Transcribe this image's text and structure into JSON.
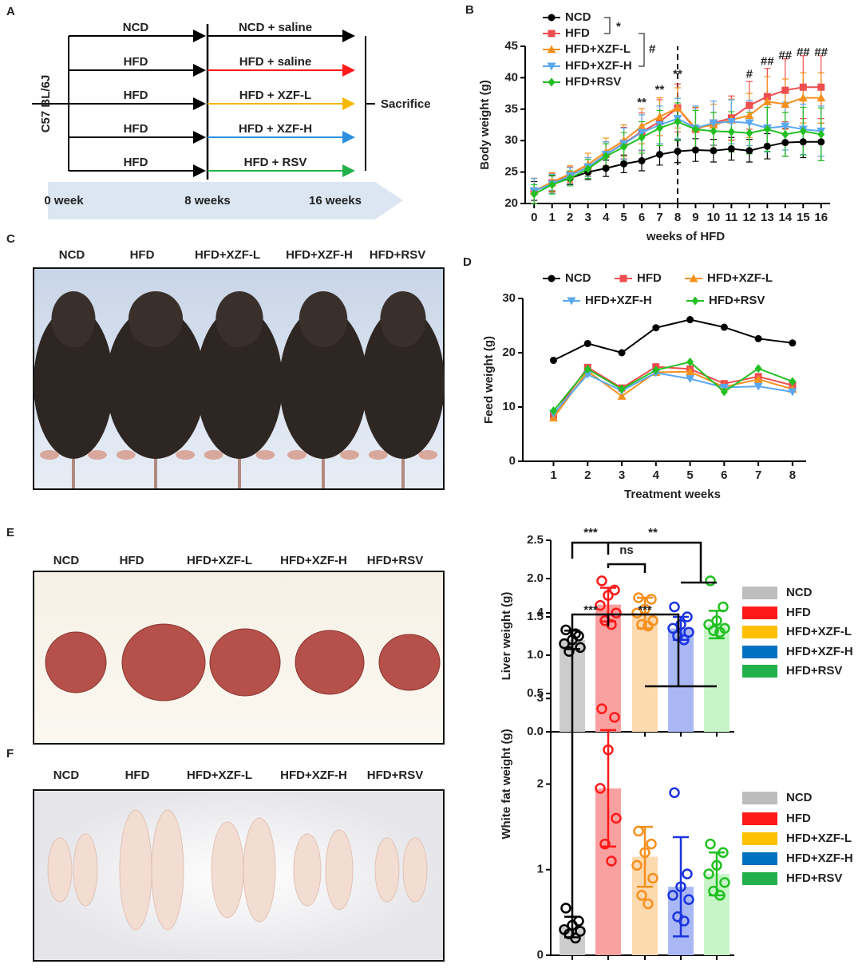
{
  "panel_a": {
    "label": "A",
    "strain": "C57 BL/6J",
    "end": "Sacrifice",
    "rows": [
      {
        "before": "NCD",
        "after": "NCD + saline",
        "color": "#000000"
      },
      {
        "before": "HFD",
        "after": "HFD + saline",
        "color": "#ff1a1a"
      },
      {
        "before": "HFD",
        "after": "HFD + XZF-L",
        "color": "#f5b800"
      },
      {
        "before": "HFD",
        "after": "HFD + XZF-H",
        "color": "#2e8ee0"
      },
      {
        "before": "HFD",
        "after": "HFD + RSV",
        "color": "#22b04b"
      }
    ],
    "timeline": [
      "0 week",
      "8 weeks",
      "16 weeks"
    ]
  },
  "panel_c": {
    "label": "C",
    "captions": [
      "NCD",
      "HFD",
      "HFD+XZF-L",
      "HFD+XZF-H",
      "HFD+RSV"
    ]
  },
  "panel_e_photo": {
    "label": "E",
    "captions": [
      "NCD",
      "HFD",
      "HFD+XZF-L",
      "HFD+XZF-H",
      "HFD+RSV"
    ]
  },
  "panel_f_photo": {
    "label": "F",
    "captions": [
      "NCD",
      "HFD",
      "HFD+XZF-L",
      "HFD+XZF-H",
      "HFD+RSV"
    ]
  },
  "chart_data": [
    {
      "type": "line",
      "label": "B",
      "x_label": "weeks of HFD",
      "y_label": "Body weight (g)",
      "x": [
        0,
        1,
        2,
        3,
        4,
        5,
        6,
        7,
        8,
        9,
        10,
        11,
        12,
        13,
        14,
        15,
        16
      ],
      "xlim": [
        -0.5,
        16.5
      ],
      "xticks": [
        0,
        1,
        2,
        3,
        4,
        5,
        6,
        7,
        8,
        9,
        10,
        11,
        12,
        13,
        14,
        15,
        16
      ],
      "ylim": [
        20,
        45
      ],
      "yticks": [
        20,
        25,
        30,
        35,
        40,
        45
      ],
      "vline": 8,
      "series": [
        {
          "name": "NCD",
          "color": "#000000",
          "marker": "circle",
          "values": [
            22,
            23.2,
            24,
            25,
            25.6,
            26.3,
            26.8,
            27.8,
            28.3,
            28.5,
            28.4,
            28.7,
            28.4,
            29.1,
            29.7,
            29.8,
            29.8
          ],
          "errors": [
            1.5,
            1.2,
            1,
            1.2,
            1.3,
            1.4,
            1.6,
            1.7,
            1.8,
            1.8,
            1.8,
            1.8,
            1.8,
            2,
            2.2,
            2.5,
            3
          ]
        },
        {
          "name": "HFD",
          "color": "#f04e4e",
          "marker": "square",
          "values": [
            22,
            23.3,
            24.5,
            25.8,
            27.8,
            29.6,
            31.4,
            33,
            35.2,
            31.8,
            32.8,
            33.6,
            35.6,
            37,
            38,
            38.5,
            38.5
          ],
          "errors": [
            2,
            1.5,
            1.3,
            1.5,
            2,
            2.5,
            3,
            3.5,
            3.8,
            3.5,
            3.5,
            3.5,
            3.8,
            4.5,
            5,
            5,
            5
          ]
        },
        {
          "name": "HFD+XZF-L",
          "color": "#f5901e",
          "marker": "tri-up",
          "values": [
            22,
            23.4,
            24.7,
            26.2,
            28.2,
            30,
            32.3,
            33.8,
            35.2,
            32,
            32.5,
            33.3,
            34,
            36.2,
            35.8,
            36.8,
            36.8
          ],
          "errors": [
            2,
            1.5,
            1.3,
            1.8,
            2.2,
            2.5,
            2.8,
            3,
            3.2,
            3.2,
            3.3,
            3.3,
            3.5,
            4,
            4,
            4,
            4
          ]
        },
        {
          "name": "HFD+XZF-H",
          "color": "#5aa8f0",
          "marker": "tri-down",
          "values": [
            22,
            23.1,
            24.4,
            25.8,
            27.8,
            29.5,
            31.3,
            32.5,
            33.5,
            32,
            32.8,
            33,
            32.8,
            32,
            32.3,
            31.8,
            31.5
          ],
          "errors": [
            2,
            1.5,
            1.3,
            1.5,
            2,
            2.5,
            2.8,
            3,
            3.2,
            3.5,
            3.5,
            3.5,
            3.6,
            3.8,
            3.8,
            4,
            4
          ]
        },
        {
          "name": "HFD+RSV",
          "color": "#22c022",
          "marker": "diamond",
          "values": [
            21.5,
            23,
            24,
            25.5,
            27.5,
            29,
            30.5,
            32,
            33,
            31.8,
            31.5,
            31.4,
            31.2,
            31.8,
            31,
            31.5,
            31
          ],
          "errors": [
            1.5,
            1.5,
            1.2,
            1.5,
            2,
            2.3,
            2.5,
            2.8,
            3,
            3,
            3,
            3.2,
            3.3,
            3.5,
            3.5,
            3.8,
            4.2
          ]
        }
      ],
      "legend_annotations": [
        "*",
        "#"
      ],
      "annotations": [
        {
          "text": "**",
          "x": 6,
          "y": 36
        },
        {
          "text": "**",
          "x": 7,
          "y": 38
        },
        {
          "text": "**",
          "x": 8,
          "y": 40.5
        },
        {
          "text": "#",
          "x": 12,
          "y": 40.5
        },
        {
          "text": "##",
          "x": 13,
          "y": 42.5
        },
        {
          "text": "##",
          "x": 14,
          "y": 43.5
        },
        {
          "text": "##",
          "x": 15,
          "y": 44
        },
        {
          "text": "##",
          "x": 16,
          "y": 44
        }
      ]
    },
    {
      "type": "line",
      "label": "D",
      "x_label": "Treatment weeks",
      "y_label": "Feed weight (g)",
      "x": [
        1,
        2,
        3,
        4,
        5,
        6,
        7,
        8
      ],
      "xlim": [
        0.1,
        8.4
      ],
      "xticks": [
        1,
        2,
        3,
        4,
        5,
        6,
        7,
        8
      ],
      "ylim": [
        0,
        30
      ],
      "yticks": [
        0,
        10,
        20,
        30
      ],
      "series": [
        {
          "name": "NCD",
          "color": "#000000",
          "marker": "circle",
          "values": [
            18.6,
            21.7,
            20,
            24.6,
            26.1,
            24.7,
            22.6,
            21.8
          ]
        },
        {
          "name": "HFD",
          "color": "#f04e4e",
          "marker": "square",
          "values": [
            8.5,
            17.3,
            13.5,
            17.4,
            17,
            14.3,
            15.6,
            14
          ]
        },
        {
          "name": "HFD+XZF-L",
          "color": "#f5901e",
          "marker": "tri-up",
          "values": [
            8,
            16.6,
            12,
            16.4,
            16.5,
            13.7,
            15.1,
            13.3
          ]
        },
        {
          "name": "HFD+XZF-H",
          "color": "#5aa8f0",
          "marker": "tri-down",
          "values": [
            8.8,
            16,
            13,
            16.3,
            15.2,
            13.6,
            13.8,
            12.8
          ]
        },
        {
          "name": "HFD+RSV",
          "color": "#22c022",
          "marker": "diamond",
          "values": [
            9.3,
            17,
            13.3,
            16.8,
            18.3,
            12.8,
            17.1,
            14.7
          ]
        }
      ]
    },
    {
      "type": "bar",
      "y_label": "Liver weight (g)",
      "categories": [
        "NCD",
        "HFD",
        "HFD+XZF-L",
        "HFD+XZF-H",
        "HFD+RSV"
      ],
      "values": [
        1.2,
        1.66,
        1.55,
        1.35,
        1.4
      ],
      "errors": [
        0.12,
        0.22,
        0.2,
        0.15,
        0.18
      ],
      "points": [
        [
          1.33,
          1.25,
          1.2,
          1.15,
          1.1,
          1.05,
          1.28
        ],
        [
          1.97,
          1.85,
          1.78,
          1.65,
          1.55,
          1.45,
          1.4
        ],
        [
          1.75,
          1.73,
          1.6,
          1.55,
          1.45,
          1.4,
          1.38
        ],
        [
          1.63,
          1.5,
          1.4,
          1.35,
          1.3,
          1.25,
          1.2
        ],
        [
          1.97,
          1.63,
          1.45,
          1.4,
          1.35,
          1.32,
          1.3
        ]
      ],
      "bar_colors": [
        "#cccccc",
        "#f9a0a0",
        "#fdd9b0",
        "#a9b8f5",
        "#c8f5c8"
      ],
      "point_colors": [
        "#000000",
        "#ff1a1a",
        "#f5901e",
        "#1a33e0",
        "#22c022"
      ],
      "legend_colors": [
        "#bdbdbd",
        "#ff1a1a",
        "#ffc000",
        "#0070c0",
        "#22b04b"
      ],
      "ylim": [
        0,
        2.5
      ],
      "yticks": [
        {
          "value": 0,
          "label": "0.0"
        },
        0.5,
        {
          "value": 1,
          "label": "1.0"
        },
        1.5,
        {
          "value": 2,
          "label": "2.0"
        },
        2.5
      ],
      "annotations": [
        "***",
        "ns",
        "**"
      ]
    },
    {
      "type": "bar",
      "y_label": "White fat weight (g)",
      "categories": [
        "NCD",
        "HFD",
        "HFD+XZF-L",
        "HFD+XZF-H",
        "HFD+RSV"
      ],
      "values": [
        0.33,
        1.95,
        1.15,
        0.8,
        0.95
      ],
      "errors": [
        0.12,
        0.68,
        0.35,
        0.58,
        0.25
      ],
      "points": [
        [
          0.55,
          0.4,
          0.35,
          0.3,
          0.28,
          0.25,
          0.2
        ],
        [
          2.88,
          2.78,
          2.4,
          1.95,
          1.6,
          1.3,
          1.1
        ],
        [
          1.45,
          1.3,
          1.2,
          1.05,
          0.9,
          0.7,
          0.6
        ],
        [
          1.9,
          0.95,
          0.8,
          0.7,
          0.65,
          0.45,
          0.4
        ],
        [
          1.3,
          1.2,
          1.05,
          0.95,
          0.85,
          0.75,
          0.7
        ]
      ],
      "bar_colors": [
        "#cccccc",
        "#f9a0a0",
        "#fdd9b0",
        "#a9b8f5",
        "#c8f5c8"
      ],
      "point_colors": [
        "#000000",
        "#ff1a1a",
        "#f5901e",
        "#1a33e0",
        "#22c022"
      ],
      "legend_colors": [
        "#bdbdbd",
        "#ff1a1a",
        "#ffc000",
        "#0070c0",
        "#22b04b"
      ],
      "ylim": [
        0,
        4
      ],
      "yticks": [
        0,
        1,
        2,
        3,
        4
      ],
      "annotations": [
        "***",
        "***"
      ]
    }
  ]
}
